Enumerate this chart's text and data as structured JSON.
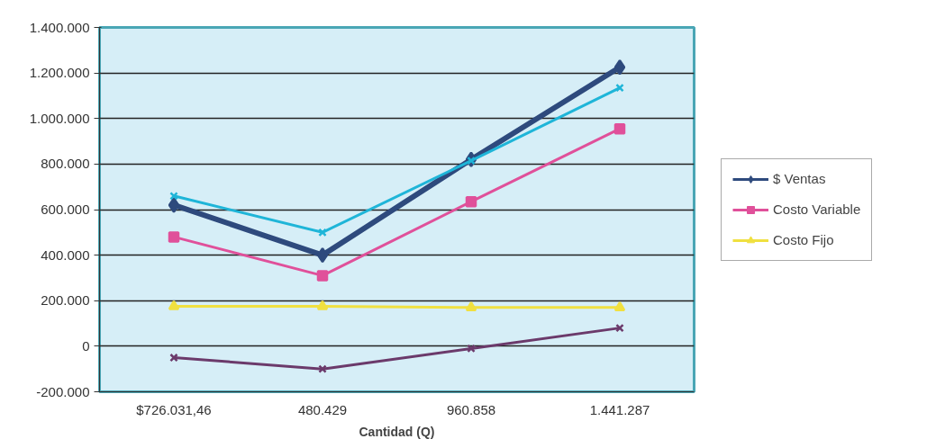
{
  "chart_data": {
    "type": "line",
    "xlabel": "Cantidad (Q)",
    "categories": [
      "$726.031,46",
      "480.429",
      "960.858",
      "1.441.287"
    ],
    "series": [
      {
        "name": "$ Ventas",
        "color": "#2e4a7d",
        "marker": "diamond",
        "values": [
          620000,
          400000,
          820000,
          1225000
        ]
      },
      {
        "name": "Costo Variable",
        "color": "#e0509a",
        "marker": "square",
        "values": [
          480000,
          310000,
          635000,
          955000
        ]
      },
      {
        "name": "Costo Fijo",
        "color": "#f0e040",
        "marker": "triangle",
        "values": [
          175000,
          175000,
          170000,
          170000
        ]
      },
      {
        "color": "#1fb5d8",
        "marker": "cross",
        "values": [
          660000,
          500000,
          815000,
          1135000
        ]
      },
      {
        "color": "#6b3a6b",
        "marker": "cross",
        "values": [
          -50000,
          -100000,
          -10000,
          80000
        ]
      }
    ],
    "ylim": [
      -200000,
      1400000
    ],
    "yticks": [
      {
        "value": -200000,
        "label": "-200.000"
      },
      0,
      {
        "value": 200000,
        "label": "200.000"
      },
      {
        "value": 400000,
        "label": "400.000"
      },
      {
        "value": 600000,
        "label": "600.000"
      },
      {
        "value": 800000,
        "label": "800.000"
      },
      {
        "value": 1000000,
        "label": "1.000.000"
      },
      {
        "value": 1200000,
        "label": "1.200.000"
      },
      {
        "value": 1400000,
        "label": "1.400.000"
      }
    ],
    "grid": "y",
    "legend": "right",
    "line_style": "solid"
  }
}
